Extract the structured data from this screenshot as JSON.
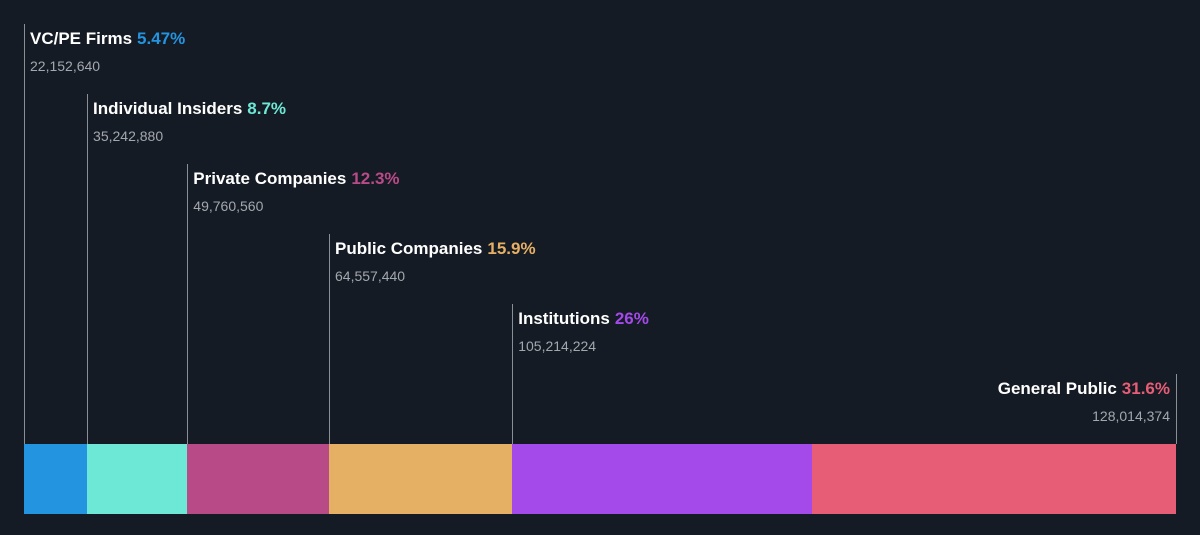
{
  "chart_data": {
    "type": "bar",
    "categories": [
      "VC/PE Firms",
      "Individual Insiders",
      "Private Companies",
      "Public Companies",
      "Institutions",
      "General Public"
    ],
    "series": [
      {
        "percent_labels": [
          "5.47%",
          "8.7%",
          "12.3%",
          "15.9%",
          "26%",
          "31.6%"
        ],
        "count_labels": [
          "22,152,640",
          "35,242,880",
          "49,760,560",
          "64,557,440",
          "105,214,224",
          "128,014,374"
        ],
        "values": [
          5.47,
          8.7,
          12.3,
          15.9,
          26,
          31.6
        ],
        "counts": [
          22152640,
          35242880,
          49760560,
          64557440,
          105214224,
          128014374
        ]
      }
    ],
    "colors": [
      "#2394e0",
      "#6ee8d6",
      "#b94a88",
      "#e5b064",
      "#a449ea",
      "#e85d76"
    ]
  }
}
